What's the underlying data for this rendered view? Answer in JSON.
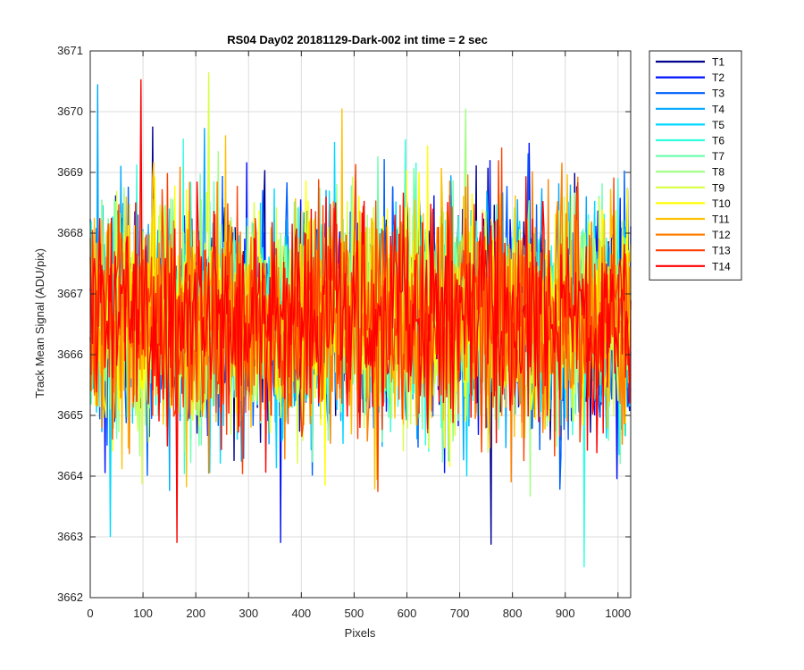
{
  "chart_data": {
    "type": "line",
    "title": "RS04 Day02 20181129-Dark-002 int time = 2 sec",
    "xlabel": "Pixels",
    "ylabel": "Track Mean Signal (ADU/pix)",
    "xlim": [
      0,
      1024
    ],
    "ylim": [
      3662,
      3671
    ],
    "xticks": [
      0,
      100,
      200,
      300,
      400,
      500,
      600,
      700,
      800,
      900,
      1000
    ],
    "yticks": [
      3662,
      3663,
      3664,
      3665,
      3666,
      3667,
      3668,
      3669,
      3670,
      3671
    ],
    "grid": true,
    "legend_position": "outside-right",
    "baseline_mean": 3666.6,
    "noise_std_approx": 0.9,
    "series": [
      {
        "name": "T1",
        "color": "#00008f"
      },
      {
        "name": "T2",
        "color": "#0010ff"
      },
      {
        "name": "T3",
        "color": "#0060ff"
      },
      {
        "name": "T4",
        "color": "#00a8ff"
      },
      {
        "name": "T5",
        "color": "#00d8ff"
      },
      {
        "name": "T6",
        "color": "#30ffe0"
      },
      {
        "name": "T7",
        "color": "#70ffb0"
      },
      {
        "name": "T8",
        "color": "#a0ff80"
      },
      {
        "name": "T9",
        "color": "#d8ff40"
      },
      {
        "name": "T10",
        "color": "#ffff00"
      },
      {
        "name": "T11",
        "color": "#ffc000"
      },
      {
        "name": "T12",
        "color": "#ff8000"
      },
      {
        "name": "T13",
        "color": "#ff4000"
      },
      {
        "name": "T14",
        "color": "#ff0000"
      }
    ],
    "notable_extremes": [
      {
        "series": "T9",
        "x": 225,
        "y": 3670.65
      },
      {
        "series": "T4",
        "x": 15,
        "y": 3670.45
      },
      {
        "series": "T8",
        "x": 712,
        "y": 3670.05
      },
      {
        "series": "T14",
        "x": 165,
        "y": 3662.9
      },
      {
        "series": "T2",
        "x": 360,
        "y": 3662.9
      },
      {
        "series": "T6",
        "x": 935,
        "y": 3662.5
      },
      {
        "series": "T5",
        "x": 38,
        "y": 3663.0
      }
    ]
  }
}
